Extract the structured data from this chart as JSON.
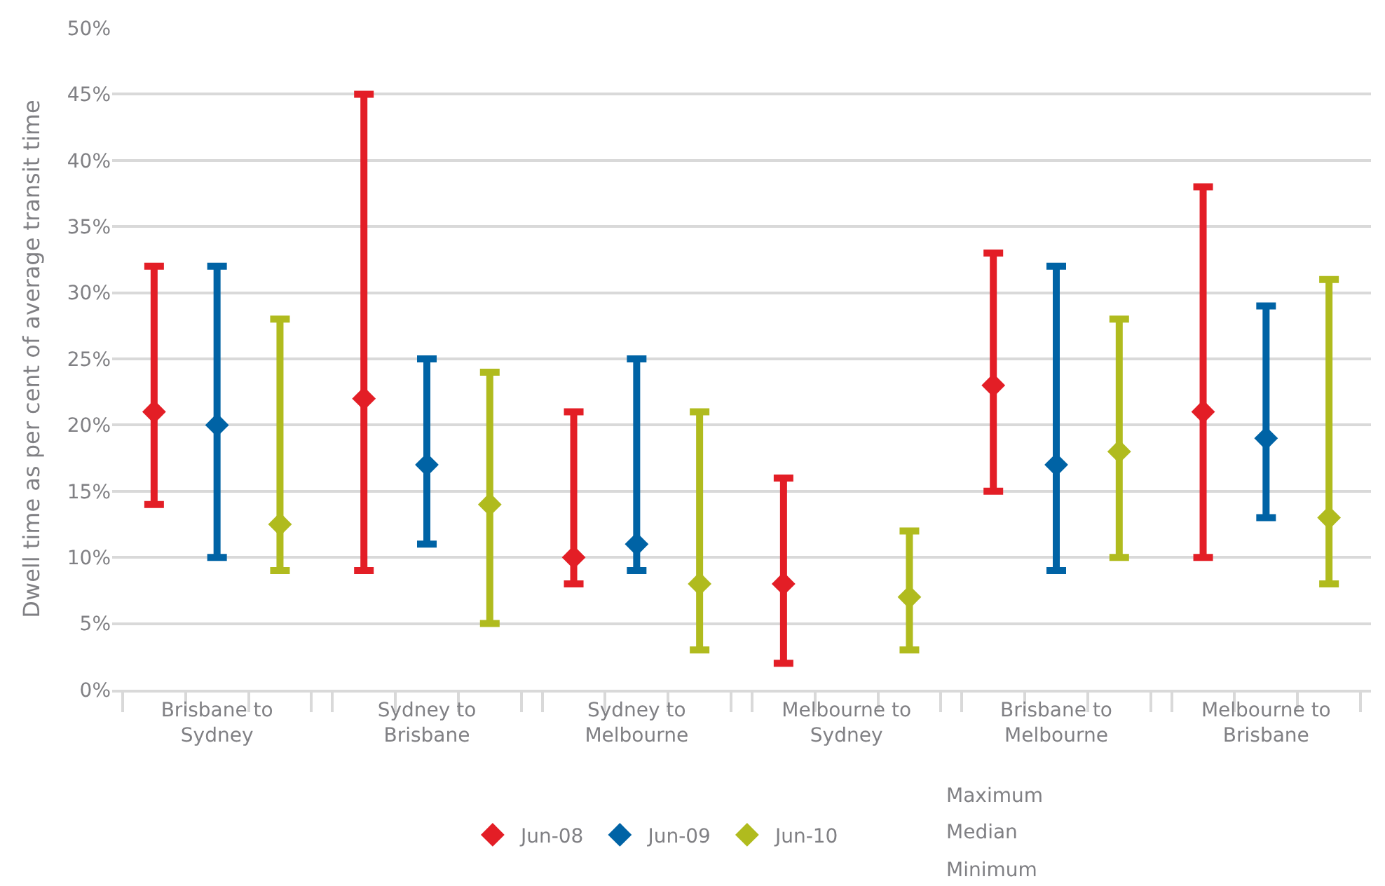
{
  "chart_data": {
    "type": "scatter",
    "ylabel": "Dwell time as per cent of average transit time",
    "categories": [
      "Brisbane to Sydney",
      "Sydney to Brisbane",
      "Sydney to Melbourne",
      "Melbourne to Sydney",
      "Brisbane to Melbourne",
      "Melbourne to Brisbane"
    ],
    "series": [
      {
        "name": "Jun-08",
        "color": "#e31e26",
        "values": [
          21,
          22,
          10,
          8,
          23,
          21
        ],
        "errors": [
          [
            14,
            32
          ],
          [
            9,
            45
          ],
          [
            8,
            21
          ],
          [
            2,
            16
          ],
          [
            15,
            33
          ],
          [
            10,
            38
          ]
        ]
      },
      {
        "name": "Jun-09",
        "color": "#0063a5",
        "values": [
          20,
          17,
          11,
          null,
          17,
          19
        ],
        "errors": [
          [
            10,
            32
          ],
          [
            11,
            25
          ],
          [
            9,
            25
          ],
          null,
          [
            9,
            32
          ],
          [
            13,
            29
          ]
        ]
      },
      {
        "name": "Jun-10",
        "color": "#b0bb1e",
        "values": [
          12.5,
          14,
          8,
          7,
          18,
          13
        ],
        "errors": [
          [
            9,
            28
          ],
          [
            5,
            24
          ],
          [
            3,
            21
          ],
          [
            3,
            12
          ],
          [
            10,
            28
          ],
          [
            8,
            31
          ]
        ]
      }
    ],
    "marker": "diamond",
    "ylim": [
      0,
      50
    ],
    "yticks": [
      {
        "value": 0,
        "label": "0%"
      },
      {
        "value": 5,
        "label": "5%"
      },
      {
        "value": 10,
        "label": "10%"
      },
      {
        "value": 15,
        "label": "15%"
      },
      {
        "value": 20,
        "label": "20%"
      },
      {
        "value": 25,
        "label": "25%"
      },
      {
        "value": 30,
        "label": "30%"
      },
      {
        "value": 35,
        "label": "35%"
      },
      {
        "value": 40,
        "label": "40%"
      },
      {
        "value": 45,
        "label": "45%"
      },
      {
        "value": 50,
        "label": "50%"
      }
    ],
    "grid": "y",
    "legend": "bottom",
    "annotations": [
      "Maximum",
      "Median",
      "Minimum"
    ]
  }
}
